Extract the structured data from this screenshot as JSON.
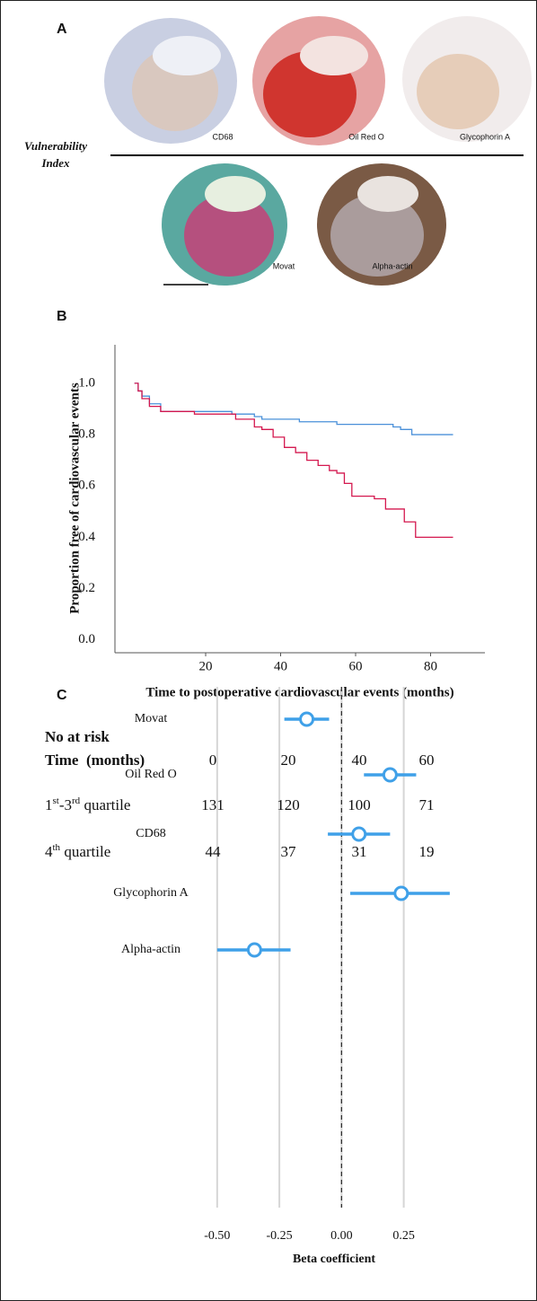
{
  "panel_a": {
    "label": "A",
    "side_label": [
      "Vulnerability",
      "Index"
    ],
    "stains": [
      "CD68",
      "Oil Red O",
      "Glycophorin A",
      "Movat",
      "Alpha-actin"
    ]
  },
  "chart_data": [
    {
      "type": "line",
      "panel_label": "B",
      "step": true,
      "xlabel": "Time to postoperative cardiovascular events (months)",
      "ylabel": "Proportion free of cardiovascular events",
      "xlim": [
        -4.2,
        94.5
      ],
      "ylim": [
        -0.05,
        1.15
      ],
      "xticks": [
        20,
        40,
        60,
        80
      ],
      "yticks": [
        {
          "value": 0,
          "label": "0.0"
        },
        {
          "value": 0.2,
          "label": "0.2"
        },
        {
          "value": 0.4,
          "label": "0.4"
        },
        {
          "value": 0.6,
          "label": "0.6"
        },
        {
          "value": 0.8,
          "label": "0.8"
        },
        {
          "value": 1,
          "label": "1.0"
        }
      ],
      "series": [
        {
          "color": "#4a90d9",
          "x": [
            1,
            2,
            3,
            5,
            8,
            27,
            33,
            35,
            45,
            55,
            70,
            72,
            75,
            86
          ],
          "values": [
            1.0,
            0.97,
            0.95,
            0.92,
            0.89,
            0.88,
            0.87,
            0.86,
            0.85,
            0.84,
            0.83,
            0.82,
            0.8,
            0.8
          ]
        },
        {
          "color": "#d4184f",
          "x": [
            1,
            2,
            3,
            5,
            8,
            17,
            28,
            33,
            35,
            38,
            41,
            44,
            47,
            50,
            53,
            55,
            57,
            59,
            65,
            68,
            73,
            76,
            86
          ],
          "values": [
            1.0,
            0.97,
            0.94,
            0.91,
            0.89,
            0.88,
            0.86,
            0.83,
            0.82,
            0.79,
            0.75,
            0.73,
            0.7,
            0.68,
            0.66,
            0.65,
            0.61,
            0.56,
            0.55,
            0.51,
            0.46,
            0.4,
            0.4
          ]
        }
      ]
    },
    {
      "type": "forest",
      "panel_label": "C",
      "categories": [
        "Movat",
        "Oil Red O",
        "CD68",
        "Glycophorin A",
        "Alpha-actin"
      ],
      "values": [
        -0.14,
        0.195,
        0.07,
        0.24,
        -0.35
      ],
      "lower": [
        -0.23,
        0.09,
        -0.055,
        0.035,
        -0.5
      ],
      "upper": [
        -0.05,
        0.3,
        0.195,
        0.435,
        -0.205
      ],
      "color": "#3fa0e8",
      "xlabel": "Beta coefficient",
      "xlim": [
        -0.55,
        0.45
      ],
      "xticks": [
        {
          "value": -0.5,
          "label": "-0.50"
        },
        {
          "value": -0.25,
          "label": "-0.25"
        },
        {
          "value": 0,
          "label": "0.00"
        },
        {
          "value": 0.25,
          "label": "0.25"
        }
      ],
      "reference_line": 0,
      "grid": true
    }
  ],
  "risk_table": {
    "title": "No at risk",
    "header_label": "Time  (months)",
    "times": [
      0,
      20,
      40,
      60
    ],
    "rows": [
      {
        "label": [
          "1",
          "st",
          "-3",
          "rd",
          " quartile"
        ],
        "values": [
          131,
          120,
          100,
          71
        ]
      },
      {
        "label": [
          "4",
          "th",
          " quartile"
        ],
        "values": [
          44,
          37,
          31,
          19
        ]
      }
    ]
  }
}
